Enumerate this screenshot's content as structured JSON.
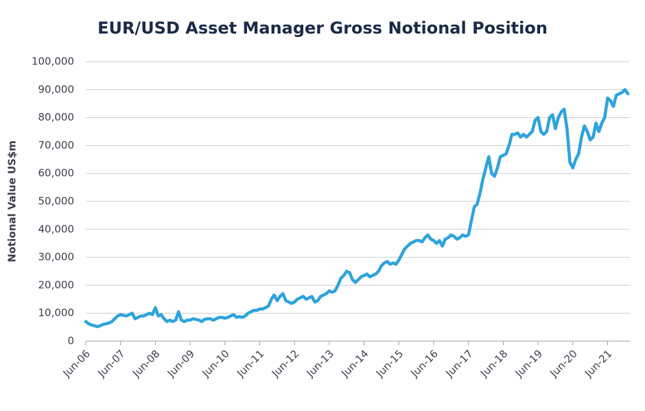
{
  "chart_data": {
    "type": "line",
    "title": "EUR/USD Asset Manager Gross Notional Position",
    "y_label": "Notional Value US$m",
    "categories": [
      "Jun-06",
      null,
      null,
      null,
      null,
      null,
      null,
      null,
      null,
      null,
      null,
      null,
      "Jun-07",
      null,
      null,
      null,
      null,
      null,
      null,
      null,
      null,
      null,
      null,
      null,
      "Jun-08",
      null,
      null,
      null,
      null,
      null,
      null,
      null,
      null,
      null,
      null,
      null,
      "Jun-09",
      null,
      null,
      null,
      null,
      null,
      null,
      null,
      null,
      null,
      null,
      null,
      "Jun-10",
      null,
      null,
      null,
      null,
      null,
      null,
      null,
      null,
      null,
      null,
      null,
      "Jun-11",
      null,
      null,
      null,
      null,
      null,
      null,
      null,
      null,
      null,
      null,
      null,
      "Jun-12",
      null,
      null,
      null,
      null,
      null,
      null,
      null,
      null,
      null,
      null,
      null,
      "Jun-13",
      null,
      null,
      null,
      null,
      null,
      null,
      null,
      null,
      null,
      null,
      null,
      "Jun-14",
      null,
      null,
      null,
      null,
      null,
      null,
      null,
      null,
      null,
      null,
      null,
      "Jun-15",
      null,
      null,
      null,
      null,
      null,
      null,
      null,
      null,
      null,
      null,
      null,
      "Jun-16",
      null,
      null,
      null,
      null,
      null,
      null,
      null,
      null,
      null,
      null,
      null,
      "Jun-17",
      null,
      null,
      null,
      null,
      null,
      null,
      null,
      null,
      null,
      null,
      null,
      "Jun-18",
      null,
      null,
      null,
      null,
      null,
      null,
      null,
      null,
      null,
      null,
      null,
      "Jun-19",
      null,
      null,
      null,
      null,
      null,
      null,
      null,
      null,
      null,
      null,
      null,
      "Jun-20",
      null,
      null,
      null,
      null,
      null,
      null,
      null,
      null,
      null,
      null,
      null,
      "Jun-21",
      null,
      null,
      null,
      null,
      null,
      null,
      null
    ],
    "series": [
      {
        "name": "Gross Notional Position",
        "color": "#2ea3dc",
        "values": [
          7000,
          6200,
          5800,
          5500,
          5200,
          5500,
          6000,
          6200,
          6500,
          7000,
          8000,
          9000,
          9500,
          9200,
          9000,
          9500,
          10000,
          8000,
          8500,
          9000,
          9000,
          9500,
          10000,
          9500,
          12000,
          9000,
          9500,
          8000,
          7000,
          7500,
          7000,
          7500,
          10500,
          7500,
          7000,
          7500,
          7500,
          8000,
          7800,
          7500,
          7000,
          7800,
          8000,
          8000,
          7500,
          8000,
          8500,
          8500,
          8200,
          8500,
          9000,
          9500,
          8500,
          8800,
          8500,
          9000,
          10000,
          10500,
          11000,
          11000,
          11500,
          11500,
          12000,
          12500,
          15000,
          16500,
          14500,
          16000,
          17000,
          14500,
          14000,
          13500,
          14000,
          15000,
          15500,
          16000,
          15000,
          15500,
          16000,
          14000,
          14500,
          16000,
          16500,
          17000,
          18000,
          17500,
          18000,
          20000,
          22500,
          23500,
          25000,
          24500,
          22000,
          21000,
          22000,
          23000,
          23500,
          24000,
          23000,
          23500,
          24000,
          25000,
          27000,
          28000,
          28500,
          27500,
          28000,
          27500,
          29000,
          31000,
          33000,
          34000,
          35000,
          35500,
          36000,
          36000,
          35500,
          37000,
          38000,
          36500,
          36000,
          35000,
          36000,
          34000,
          36500,
          37000,
          38000,
          37500,
          36500,
          37000,
          38000,
          37500,
          38000,
          43000,
          48000,
          49000,
          53000,
          58000,
          62000,
          66000,
          60000,
          59000,
          62000,
          66000,
          66500,
          67000,
          70000,
          74000,
          74000,
          74500,
          73000,
          74000,
          73000,
          74000,
          75000,
          79000,
          80000,
          75000,
          74000,
          75000,
          80000,
          81000,
          76000,
          80000,
          82000,
          83000,
          76000,
          64000,
          62000,
          65000,
          67000,
          73000,
          77000,
          75000,
          72000,
          73000,
          78000,
          75000,
          78000,
          80000,
          87000,
          86000,
          84000,
          88000,
          88500,
          89000,
          90000,
          88500
        ]
      }
    ],
    "ylim": [
      0,
      100000
    ],
    "yticks": [
      0,
      {
        "value": 10000,
        "label": "10,000"
      },
      {
        "value": 20000,
        "label": "20,000"
      },
      {
        "value": 30000,
        "label": "30,000"
      },
      {
        "value": 40000,
        "label": "40,000"
      },
      {
        "value": 50000,
        "label": "50,000"
      },
      {
        "value": 60000,
        "label": "60,000"
      },
      {
        "value": 70000,
        "label": "70,000"
      },
      {
        "value": 80000,
        "label": "80,000"
      },
      {
        "value": 90000,
        "label": "90,000"
      },
      {
        "value": 100000,
        "label": "100,000"
      }
    ],
    "grid": true
  }
}
